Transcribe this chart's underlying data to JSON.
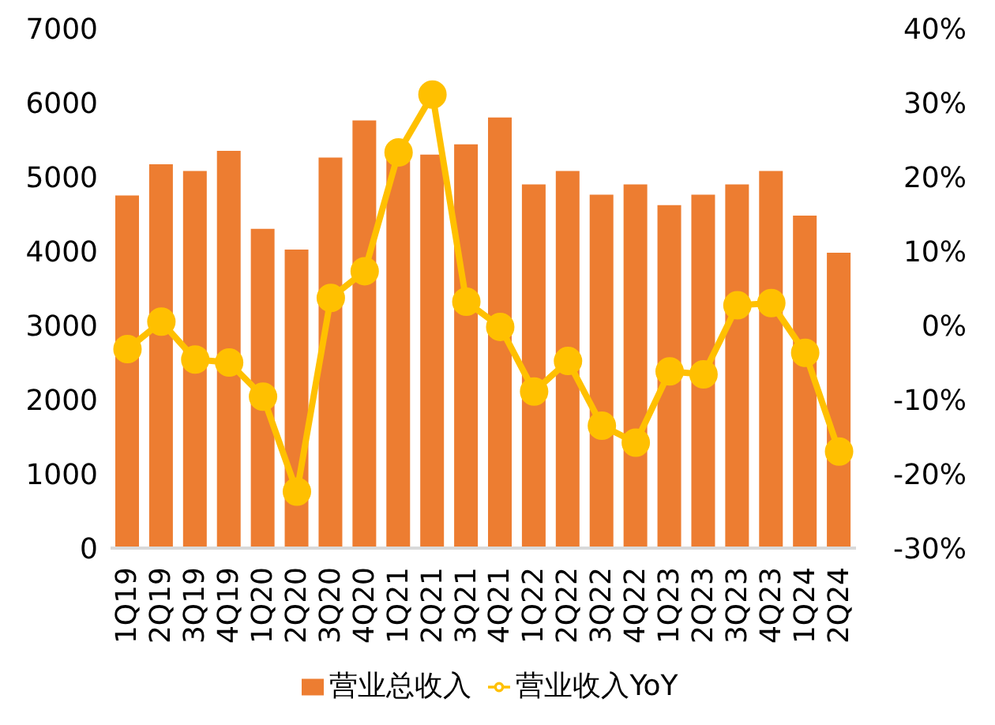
{
  "chart_data": {
    "type": "bar",
    "categories": [
      "1Q19",
      "2Q19",
      "3Q19",
      "4Q19",
      "1Q20",
      "2Q20",
      "3Q20",
      "4Q20",
      "1Q21",
      "2Q21",
      "3Q21",
      "4Q21",
      "1Q22",
      "2Q22",
      "3Q22",
      "4Q22",
      "1Q23",
      "2Q23",
      "3Q23",
      "4Q23",
      "1Q24",
      "2Q24"
    ],
    "series": [
      {
        "name": "营业总收入",
        "color": "#ed7d31",
        "values": [
          4750,
          5170,
          5080,
          5350,
          4300,
          4020,
          5260,
          5760,
          5350,
          5300,
          5440,
          5800,
          4900,
          5080,
          4760,
          4900,
          4620,
          4760,
          4900,
          5080,
          4480,
          3980
        ]
      },
      {
        "name": "营业收入YoY",
        "type": "line",
        "axis": "y2",
        "color": "#ffc000",
        "values": [
          -3.2,
          0.5,
          -4.6,
          -5,
          -9.6,
          -22.4,
          3.7,
          7.3,
          23.3,
          31.1,
          3.2,
          -0.2,
          -8.9,
          -4.8,
          -13.5,
          -15.8,
          -6.2,
          -6.6,
          2.7,
          3,
          -3.7,
          -17
        ]
      }
    ],
    "ylim": [
      0,
      7000
    ],
    "yticks": [
      0,
      1000,
      2000,
      3000,
      4000,
      5000,
      6000,
      7000
    ],
    "y2lim": [
      -30,
      40
    ],
    "y2ticks": [
      {
        "value": -30,
        "label": "-30%"
      },
      {
        "value": -20,
        "label": "-20%"
      },
      {
        "value": -10,
        "label": "-10%"
      },
      {
        "value": 0,
        "label": "0%"
      },
      {
        "value": 10,
        "label": "10%"
      },
      {
        "value": 20,
        "label": "20%"
      },
      {
        "value": 30,
        "label": "30%"
      },
      {
        "value": 40,
        "label": "40%"
      }
    ],
    "grid": false,
    "legend": "bottom",
    "marker": "circle",
    "line_style": "solid"
  }
}
